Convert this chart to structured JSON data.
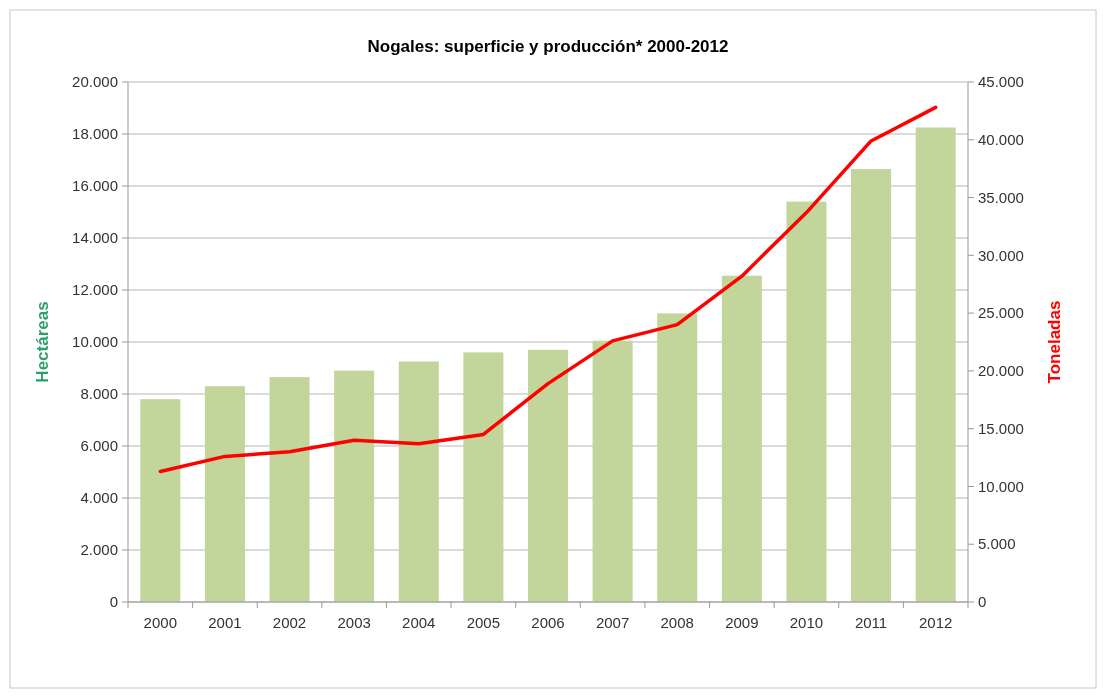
{
  "chart_data": {
    "type": "bar",
    "title": "Nogales: superficie y producción* 2000-2012",
    "ylabel": "Hectáreas",
    "y2label": "Toneladas",
    "categories": [
      "2000",
      "2001",
      "2002",
      "2003",
      "2004",
      "2005",
      "2006",
      "2007",
      "2008",
      "2009",
      "2010",
      "2011",
      "2012"
    ],
    "series": [
      {
        "color": "#c2d69b",
        "values": [
          7800,
          8300,
          8650,
          8900,
          9250,
          9600,
          9700,
          10050,
          11100,
          12550,
          15400,
          16650,
          18250
        ]
      },
      {
        "type": "line",
        "axis": "y2",
        "color": "#ff0000",
        "values": [
          11300,
          12600,
          13000,
          14000,
          13700,
          14500,
          18900,
          22600,
          24000,
          28200,
          33700,
          39900,
          42800
        ]
      }
    ],
    "ylim": [
      0,
      20000
    ],
    "yticks": [
      {
        "value": 0,
        "label": "0"
      },
      {
        "value": 2000,
        "label": "2.000"
      },
      {
        "value": 4000,
        "label": "4.000"
      },
      {
        "value": 6000,
        "label": "6.000"
      },
      {
        "value": 8000,
        "label": "8.000"
      },
      {
        "value": 10000,
        "label": "10.000"
      },
      {
        "value": 12000,
        "label": "12.000"
      },
      {
        "value": 14000,
        "label": "14.000"
      },
      {
        "value": 16000,
        "label": "16.000"
      },
      {
        "value": 18000,
        "label": "18.000"
      },
      {
        "value": 20000,
        "label": "20.000"
      }
    ],
    "y2lim": [
      0,
      45000
    ],
    "y2ticks": [
      {
        "value": 0,
        "label": "0"
      },
      {
        "value": 5000,
        "label": "5.000"
      },
      {
        "value": 10000,
        "label": "10.000"
      },
      {
        "value": 15000,
        "label": "15.000"
      },
      {
        "value": 20000,
        "label": "20.000"
      },
      {
        "value": 25000,
        "label": "25.000"
      },
      {
        "value": 30000,
        "label": "30.000"
      },
      {
        "value": 35000,
        "label": "35.000"
      },
      {
        "value": 40000,
        "label": "40.000"
      },
      {
        "value": 45000,
        "label": "45.000"
      }
    ],
    "grid": "y",
    "line_style": "solid",
    "marker": "none"
  }
}
